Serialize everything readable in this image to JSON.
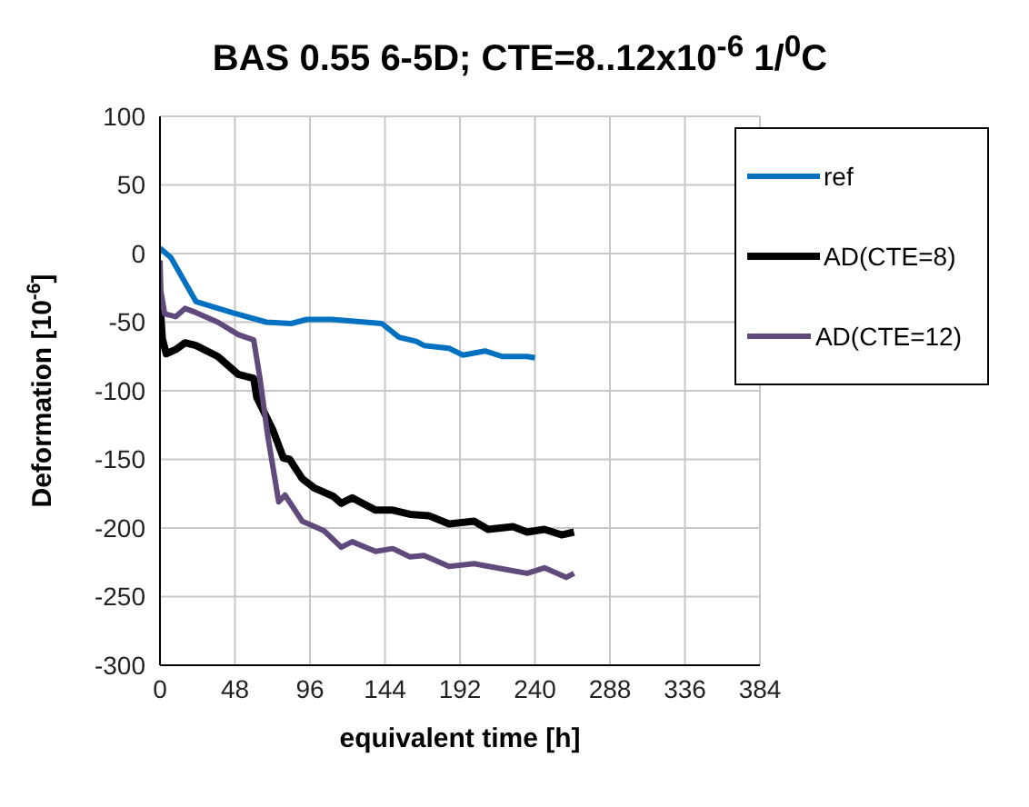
{
  "chart_data": {
    "type": "line",
    "title": "BAS 0.55 6-5D; CTE=8..12x10$^{-6}$ 1/$^{0}$C",
    "xlabel": "equivalent time [h]",
    "ylabel": "Deformation [10$^{-6}$]",
    "xlim": [
      0,
      384
    ],
    "xticks": [
      0,
      48,
      96,
      144,
      192,
      240,
      288,
      336,
      384
    ],
    "ylim": [
      -300,
      100
    ],
    "yticks": [
      -300,
      -250,
      -200,
      -150,
      -100,
      -50,
      0,
      50,
      100
    ],
    "grid": true,
    "legend": "top right",
    "marker": "none",
    "line_style": "solid",
    "series": [
      {
        "name": "ref",
        "color": "#0070c0",
        "x": [
          0,
          7,
          23,
          46,
          68,
          84,
          94,
          110,
          142,
          153,
          164,
          169,
          185,
          194,
          208,
          219,
          235,
          240
        ],
        "values": [
          4,
          -3,
          -35,
          -43,
          -50,
          -51,
          -48,
          -48,
          -51,
          -61,
          -64,
          -67,
          -69,
          -74,
          -71,
          -75,
          -75,
          -76
        ]
      },
      {
        "name": "AD(CTE=8)",
        "color": "#000000",
        "x": [
          0,
          1.5,
          4,
          10,
          16,
          23,
          37,
          50,
          60,
          62,
          72,
          79,
          83,
          91,
          99,
          111,
          116,
          123,
          138,
          149,
          160,
          172,
          185,
          201,
          210,
          226,
          235,
          246,
          257,
          265
        ],
        "values": [
          -36,
          -62,
          -73,
          -70,
          -65,
          -67,
          -75,
          -88,
          -91,
          -105,
          -128,
          -149,
          -150,
          -164,
          -171,
          -177,
          -182,
          -178,
          -187,
          -187,
          -190,
          -191,
          -197,
          -195,
          -201,
          -199,
          -203,
          -201,
          -205,
          -203
        ]
      },
      {
        "name": "AD(CTE=12)",
        "color": "#604a7b",
        "x": [
          0,
          0.5,
          3,
          10,
          16,
          23,
          37,
          50,
          60,
          64,
          69,
          76,
          80,
          91,
          105,
          116,
          123,
          138,
          149,
          160,
          169,
          185,
          201,
          220,
          235,
          246,
          260,
          265
        ],
        "values": [
          -5,
          -27,
          -44,
          -46,
          -40,
          -43,
          -50,
          -59,
          -63,
          -91,
          -133,
          -181,
          -176,
          -195,
          -202,
          -214,
          -210,
          -217,
          -215,
          -221,
          -220,
          -228,
          -226,
          -230,
          -233,
          -229,
          -236,
          -233
        ]
      }
    ]
  }
}
